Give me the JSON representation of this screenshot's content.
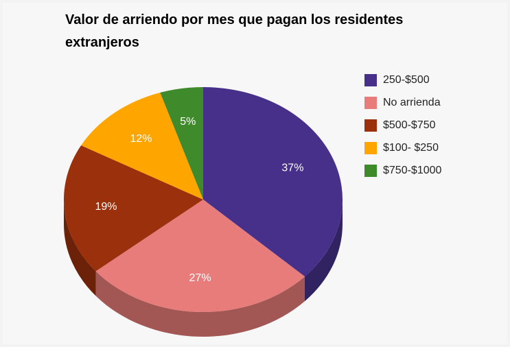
{
  "chart_data": {
    "type": "pie",
    "title": "Valor de arriendo por mes que pagan los residentes extranjeros",
    "categories": [
      "250-$500",
      "No arrienda",
      "$500-$750",
      "$100- $250",
      "$750-$1000"
    ],
    "values": [
      37,
      27,
      19,
      12,
      5
    ],
    "value_labels": [
      "37%",
      "27%",
      "19%",
      "12%",
      "5%"
    ],
    "colors": [
      "#46308a",
      "#e87c7a",
      "#9a300c",
      "#ffa500",
      "#3f8a2a"
    ],
    "legend": "right"
  }
}
